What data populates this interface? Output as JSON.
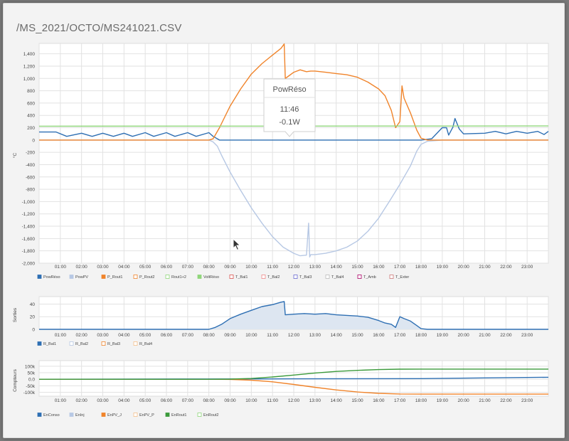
{
  "page": {
    "title": "/MS_2021/OCTO/MS241021.CSV"
  },
  "time_ticks": [
    "01:00",
    "02:00",
    "03:00",
    "04:00",
    "05:00",
    "06:00",
    "07:00",
    "08:00",
    "09:00",
    "10:00",
    "11:00",
    "12:00",
    "13:00",
    "14:00",
    "15:00",
    "16:00",
    "17:00",
    "18:00",
    "19:00",
    "20:00",
    "21:00",
    "22:00",
    "23:00"
  ],
  "tooltip": {
    "series": "PowRéso",
    "time": "11:46",
    "value": "-0.1W"
  },
  "colors": {
    "blue": "#2e6fb3",
    "lightblue": "#b7c8e4",
    "orange": "#f0842b",
    "lightgreen": "#8fd67a",
    "green": "#3b9a3b",
    "grid": "#e2e2e2"
  },
  "chart_data": [
    {
      "type": "line",
      "ylabel": "°C",
      "ylim": [
        -2000,
        1500
      ],
      "yticks": [
        1400,
        1200,
        1000,
        800,
        600,
        400,
        200,
        0,
        -200,
        -400,
        -600,
        -800,
        -1000,
        -1200,
        -1400,
        -1600,
        -1800,
        -2000
      ],
      "ytick_labels": [
        "1,400",
        "1,200",
        "1,000",
        "800",
        "600",
        "400",
        "200",
        "0",
        "-200",
        "-400",
        "-600",
        "-800",
        "-1,000",
        "-1,200",
        "-1,400",
        "-1,600",
        "-1,800",
        "-2,000"
      ],
      "legend": [
        "PowRéso",
        "PowPV",
        "P_Rout1",
        "P_Rout2",
        "Rout1+2",
        "VoltRéso",
        "T_Bal1",
        "T_Bal2",
        "T_Bal3",
        "T_Bal4",
        "T_Amb",
        "T_Exter"
      ],
      "series": [
        {
          "name": "PowRéso",
          "color": "#2e6fb3",
          "x": [
            0,
            0.8,
            1.3,
            2,
            2.5,
            3,
            3.5,
            4,
            4.4,
            5,
            5.4,
            6,
            6.4,
            7,
            7.4,
            8,
            8.2,
            8.5,
            10,
            12,
            14,
            15.5,
            17,
            18,
            18.5,
            19,
            19.2,
            19.3,
            19.5,
            19.6,
            19.8,
            20,
            21,
            21.5,
            22,
            22.5,
            23,
            23.5,
            23.8,
            24
          ],
          "y": [
            130,
            130,
            60,
            110,
            60,
            110,
            60,
            110,
            60,
            120,
            60,
            120,
            60,
            120,
            60,
            120,
            60,
            0,
            0,
            0,
            0,
            0,
            0,
            0,
            20,
            200,
            200,
            80,
            210,
            350,
            180,
            100,
            110,
            140,
            100,
            140,
            110,
            140,
            90,
            140
          ]
        },
        {
          "name": "PowPV",
          "color": "#b7c8e4",
          "x": [
            0,
            8,
            8.2,
            8.4,
            8.6,
            9,
            9.5,
            10,
            10.5,
            11,
            11.5,
            12,
            12.3,
            12.6,
            12.7,
            12.75,
            12.8,
            13,
            13.5,
            14,
            14.5,
            15,
            15.5,
            16,
            16.5,
            17,
            17.5,
            17.8,
            18,
            18.3,
            19,
            24
          ],
          "y": [
            0,
            0,
            -30,
            -100,
            -250,
            -520,
            -820,
            -1100,
            -1350,
            -1570,
            -1740,
            -1840,
            -1880,
            -1870,
            -1350,
            -1900,
            -1860,
            -1860,
            -1840,
            -1800,
            -1740,
            -1640,
            -1480,
            -1270,
            -1000,
            -720,
            -420,
            -180,
            -70,
            -20,
            0,
            0
          ]
        },
        {
          "name": "P_Rout1",
          "color": "#f0842b",
          "x": [
            0,
            8,
            8.2,
            8.5,
            9,
            9.5,
            10,
            10.5,
            11,
            11.4,
            11.55,
            11.6,
            11.8,
            12,
            12.3,
            12.6,
            12.8,
            13,
            13.5,
            14,
            14.5,
            15,
            15.5,
            16,
            16.3,
            16.6,
            16.8,
            17,
            17.1,
            17.15,
            17.2,
            17.5,
            17.8,
            18,
            18.3,
            24
          ],
          "y": [
            0,
            0,
            20,
            200,
            550,
            830,
            1070,
            1240,
            1380,
            1490,
            1560,
            1000,
            1050,
            1100,
            1140,
            1110,
            1120,
            1120,
            1100,
            1080,
            1060,
            1020,
            940,
            830,
            720,
            480,
            200,
            300,
            880,
            780,
            680,
            440,
            160,
            30,
            0,
            0
          ]
        },
        {
          "name": "Rout1+2",
          "color": "#8fd67a",
          "x": [
            0,
            24
          ],
          "y": [
            225,
            228
          ]
        }
      ]
    },
    {
      "type": "area",
      "ylabel": "Sorties",
      "ylim": [
        0,
        45
      ],
      "yticks": [
        40,
        20,
        0
      ],
      "ytick_labels": [
        "40",
        "20",
        "0"
      ],
      "legend": [
        "R_Bal1",
        "R_Bal2",
        "R_Bal3",
        "R_Bal4"
      ],
      "series": [
        {
          "name": "R_Bal1",
          "color": "#2e6fb3",
          "x": [
            0,
            8,
            8.3,
            8.6,
            9,
            9.5,
            10,
            10.5,
            11,
            11.4,
            11.55,
            11.6,
            12,
            12.5,
            13,
            13.5,
            14,
            14.5,
            15,
            15.5,
            16,
            16.3,
            16.6,
            16.8,
            17,
            17.2,
            17.5,
            17.8,
            18,
            18.3,
            24
          ],
          "y": [
            0,
            0,
            3,
            8,
            17,
            24,
            30,
            36,
            39,
            43,
            44,
            23,
            24,
            25,
            24,
            25,
            23,
            22,
            21,
            19,
            14,
            10,
            8,
            3,
            20,
            17,
            13,
            6,
            1,
            0,
            0
          ]
        }
      ]
    },
    {
      "type": "line",
      "ylabel": "Compteurs",
      "ylim": [
        -130000,
        110000
      ],
      "yticks": [
        100000,
        50000,
        0,
        -50000,
        -100000
      ],
      "ytick_labels": [
        "100k",
        "50k",
        "0.0",
        "-50k",
        "-100k"
      ],
      "legend": [
        "EnConso",
        "EnInj",
        "EnPV_J",
        "EnPV_P",
        "EnRout1",
        "EnRout2"
      ],
      "series": [
        {
          "name": "EnConso",
          "color": "#2e6fb3",
          "x": [
            0,
            8,
            12,
            18,
            24
          ],
          "y": [
            0,
            2000,
            3000,
            5000,
            15000
          ]
        },
        {
          "name": "EnPV_J",
          "color": "#f0842b",
          "x": [
            0,
            8,
            9,
            10,
            11,
            12,
            13,
            14,
            15,
            16,
            17,
            18,
            24
          ],
          "y": [
            0,
            0,
            -1000,
            -7000,
            -20000,
            -40000,
            -62000,
            -82000,
            -98000,
            -108000,
            -113000,
            -114000,
            -114000
          ]
        },
        {
          "name": "EnRout1",
          "color": "#3b9a3b",
          "x": [
            0,
            8,
            9,
            10,
            11,
            12,
            13,
            14,
            15,
            16,
            17,
            18,
            24
          ],
          "y": [
            0,
            0,
            1000,
            6000,
            17000,
            32000,
            48000,
            60000,
            68000,
            74000,
            77000,
            78000,
            78000
          ]
        }
      ]
    }
  ]
}
